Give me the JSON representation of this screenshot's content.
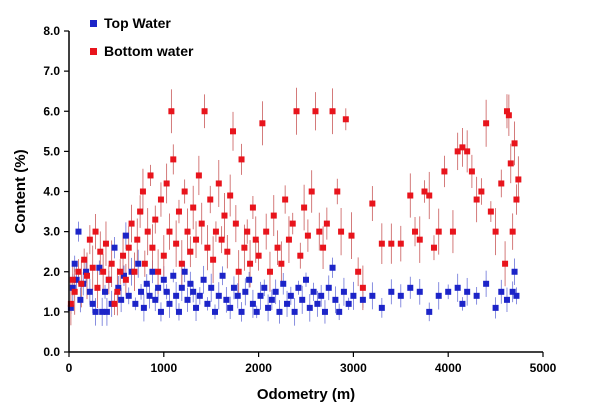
{
  "chart_data": {
    "type": "scatter",
    "xlabel": "Odometry (m)",
    "ylabel": "Content (%)",
    "xlim": [
      0,
      5000
    ],
    "ylim": [
      0,
      8
    ],
    "x_ticks": [
      "0",
      "1000",
      "2000",
      "3000",
      "4000",
      "5000"
    ],
    "y_ticks": [
      "0.0",
      "1.0",
      "2.0",
      "3.0",
      "4.0",
      "5.0",
      "6.0",
      "7.0",
      "8.0"
    ],
    "grid": false,
    "legend_position": "top-left",
    "error_bars": true,
    "series": [
      {
        "name": "Top Water",
        "color": "#1c24c8",
        "marker": "square",
        "points": [
          [
            20,
            1.1
          ],
          [
            40,
            1.6
          ],
          [
            60,
            2.2
          ],
          [
            80,
            1.8
          ],
          [
            100,
            3.0
          ],
          [
            120,
            1.3
          ],
          [
            150,
            1.7
          ],
          [
            180,
            2.0
          ],
          [
            220,
            1.5
          ],
          [
            250,
            1.2
          ],
          [
            280,
            1.0
          ],
          [
            320,
            2.1
          ],
          [
            350,
            1.0
          ],
          [
            380,
            1.5
          ],
          [
            400,
            1.0
          ],
          [
            420,
            1.8
          ],
          [
            450,
            1.2
          ],
          [
            480,
            2.6
          ],
          [
            520,
            1.6
          ],
          [
            550,
            1.3
          ],
          [
            580,
            1.9
          ],
          [
            600,
            2.9
          ],
          [
            630,
            1.4
          ],
          [
            660,
            2.0
          ],
          [
            700,
            1.2
          ],
          [
            730,
            2.2
          ],
          [
            760,
            1.5
          ],
          [
            790,
            1.1
          ],
          [
            820,
            1.7
          ],
          [
            850,
            1.4
          ],
          [
            880,
            2.0
          ],
          [
            910,
            1.3
          ],
          [
            940,
            1.6
          ],
          [
            970,
            1.0
          ],
          [
            1000,
            1.8
          ],
          [
            1030,
            1.5
          ],
          [
            1060,
            1.2
          ],
          [
            1100,
            1.9
          ],
          [
            1130,
            1.4
          ],
          [
            1160,
            1.0
          ],
          [
            1190,
            1.6
          ],
          [
            1220,
            2.0
          ],
          [
            1250,
            1.3
          ],
          [
            1280,
            1.7
          ],
          [
            1310,
            1.5
          ],
          [
            1340,
            1.1
          ],
          [
            1380,
            1.4
          ],
          [
            1420,
            1.8
          ],
          [
            1460,
            1.2
          ],
          [
            1500,
            1.6
          ],
          [
            1540,
            1.0
          ],
          [
            1580,
            1.4
          ],
          [
            1620,
            1.9
          ],
          [
            1660,
            1.3
          ],
          [
            1700,
            1.1
          ],
          [
            1740,
            1.6
          ],
          [
            1780,
            1.4
          ],
          [
            1820,
            1.0
          ],
          [
            1860,
            1.5
          ],
          [
            1900,
            1.8
          ],
          [
            1940,
            1.2
          ],
          [
            1980,
            1.0
          ],
          [
            2020,
            1.4
          ],
          [
            2060,
            1.6
          ],
          [
            2100,
            1.1
          ],
          [
            2140,
            1.3
          ],
          [
            2180,
            1.5
          ],
          [
            2220,
            1.0
          ],
          [
            2260,
            1.7
          ],
          [
            2300,
            1.2
          ],
          [
            2340,
            1.4
          ],
          [
            2380,
            1.0
          ],
          [
            2420,
            1.6
          ],
          [
            2460,
            1.3
          ],
          [
            2500,
            1.8
          ],
          [
            2540,
            1.1
          ],
          [
            2580,
            1.5
          ],
          [
            2620,
            1.2
          ],
          [
            2660,
            1.4
          ],
          [
            2700,
            1.0
          ],
          [
            2740,
            1.6
          ],
          [
            2780,
            2.1
          ],
          [
            2810,
            1.3
          ],
          [
            2850,
            1.0
          ],
          [
            2900,
            1.5
          ],
          [
            2950,
            1.2
          ],
          [
            3000,
            1.4
          ],
          [
            3100,
            1.3
          ],
          [
            3200,
            1.4
          ],
          [
            3300,
            1.1
          ],
          [
            3400,
            1.5
          ],
          [
            3500,
            1.4
          ],
          [
            3600,
            1.6
          ],
          [
            3700,
            1.5
          ],
          [
            3800,
            1.0
          ],
          [
            3900,
            1.4
          ],
          [
            4000,
            1.5
          ],
          [
            4100,
            1.6
          ],
          [
            4150,
            1.2
          ],
          [
            4200,
            1.5
          ],
          [
            4300,
            1.4
          ],
          [
            4400,
            1.7
          ],
          [
            4500,
            1.1
          ],
          [
            4560,
            1.5
          ],
          [
            4620,
            1.3
          ],
          [
            4680,
            1.5
          ],
          [
            4700,
            2.0
          ],
          [
            4720,
            1.4
          ]
        ]
      },
      {
        "name": "Bottom water",
        "color": "#e8141c",
        "marker": "square",
        "points": [
          [
            20,
            1.2
          ],
          [
            40,
            1.8
          ],
          [
            60,
            1.5
          ],
          [
            100,
            2.0
          ],
          [
            130,
            1.7
          ],
          [
            160,
            2.3
          ],
          [
            190,
            1.9
          ],
          [
            220,
            2.8
          ],
          [
            250,
            2.1
          ],
          [
            280,
            3.0
          ],
          [
            300,
            1.6
          ],
          [
            330,
            2.5
          ],
          [
            360,
            2.0
          ],
          [
            390,
            2.7
          ],
          [
            420,
            1.8
          ],
          [
            450,
            2.2
          ],
          [
            480,
            1.2
          ],
          [
            510,
            1.5
          ],
          [
            540,
            2.0
          ],
          [
            570,
            2.4
          ],
          [
            600,
            1.8
          ],
          [
            630,
            2.6
          ],
          [
            660,
            3.2
          ],
          [
            690,
            2.0
          ],
          [
            720,
            2.8
          ],
          [
            750,
            3.5
          ],
          [
            780,
            4.0
          ],
          [
            800,
            2.2
          ],
          [
            830,
            3.0
          ],
          [
            860,
            4.4
          ],
          [
            880,
            2.6
          ],
          [
            910,
            3.3
          ],
          [
            940,
            2.0
          ],
          [
            970,
            3.8
          ],
          [
            1000,
            2.4
          ],
          [
            1030,
            4.2
          ],
          [
            1060,
            3.0
          ],
          [
            1080,
            6.0
          ],
          [
            1100,
            4.8
          ],
          [
            1130,
            2.7
          ],
          [
            1160,
            3.5
          ],
          [
            1190,
            2.2
          ],
          [
            1220,
            4.0
          ],
          [
            1250,
            3.0
          ],
          [
            1280,
            2.5
          ],
          [
            1310,
            3.6
          ],
          [
            1340,
            2.8
          ],
          [
            1370,
            4.4
          ],
          [
            1400,
            3.2
          ],
          [
            1430,
            6.0
          ],
          [
            1460,
            2.6
          ],
          [
            1490,
            3.8
          ],
          [
            1520,
            2.3
          ],
          [
            1550,
            3.0
          ],
          [
            1580,
            4.2
          ],
          [
            1610,
            2.8
          ],
          [
            1640,
            3.4
          ],
          [
            1670,
            2.5
          ],
          [
            1700,
            3.9
          ],
          [
            1730,
            5.5
          ],
          [
            1760,
            3.2
          ],
          [
            1790,
            2.0
          ],
          [
            1820,
            4.8
          ],
          [
            1850,
            2.6
          ],
          [
            1880,
            3.0
          ],
          [
            1910,
            2.2
          ],
          [
            1940,
            3.6
          ],
          [
            1970,
            2.8
          ],
          [
            2000,
            2.4
          ],
          [
            2040,
            5.7
          ],
          [
            2080,
            3.0
          ],
          [
            2120,
            2.0
          ],
          [
            2160,
            3.4
          ],
          [
            2200,
            2.6
          ],
          [
            2240,
            2.2
          ],
          [
            2280,
            3.8
          ],
          [
            2320,
            2.8
          ],
          [
            2360,
            3.2
          ],
          [
            2400,
            6.0
          ],
          [
            2440,
            2.4
          ],
          [
            2480,
            3.6
          ],
          [
            2520,
            2.9
          ],
          [
            2560,
            4.0
          ],
          [
            2600,
            6.0
          ],
          [
            2640,
            3.0
          ],
          [
            2680,
            2.6
          ],
          [
            2720,
            3.2
          ],
          [
            2780,
            6.0
          ],
          [
            2830,
            4.0
          ],
          [
            2870,
            3.0
          ],
          [
            2920,
            5.8
          ],
          [
            2980,
            2.9
          ],
          [
            3050,
            2.0
          ],
          [
            3100,
            1.6
          ],
          [
            3200,
            3.7
          ],
          [
            3300,
            2.7
          ],
          [
            3400,
            2.7
          ],
          [
            3500,
            2.7
          ],
          [
            3600,
            3.9
          ],
          [
            3650,
            3.0
          ],
          [
            3700,
            2.8
          ],
          [
            3750,
            4.0
          ],
          [
            3800,
            3.9
          ],
          [
            3850,
            2.6
          ],
          [
            3900,
            3.0
          ],
          [
            3960,
            4.5
          ],
          [
            4050,
            3.0
          ],
          [
            4100,
            5.0
          ],
          [
            4150,
            5.1
          ],
          [
            4200,
            5.0
          ],
          [
            4250,
            4.5
          ],
          [
            4300,
            3.8
          ],
          [
            4350,
            4.0
          ],
          [
            4400,
            5.7
          ],
          [
            4450,
            3.5
          ],
          [
            4500,
            3.0
          ],
          [
            4560,
            4.2
          ],
          [
            4600,
            2.2
          ],
          [
            4620,
            6.0
          ],
          [
            4640,
            5.9
          ],
          [
            4660,
            4.7
          ],
          [
            4680,
            3.0
          ],
          [
            4700,
            5.2
          ],
          [
            4720,
            3.8
          ],
          [
            4740,
            4.3
          ]
        ]
      }
    ]
  }
}
